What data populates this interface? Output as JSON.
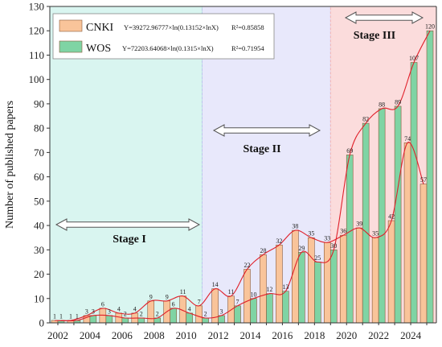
{
  "chart_data": {
    "type": "bar",
    "ylabel": "Number of published papers",
    "xlabel": "",
    "ylim": [
      0,
      130
    ],
    "yticks": [
      0,
      10,
      20,
      30,
      40,
      50,
      60,
      70,
      80,
      90,
      100,
      110,
      120,
      130
    ],
    "xtick_labels": [
      "2002",
      "2004",
      "2006",
      "2008",
      "2010",
      "2012",
      "2014",
      "2016",
      "2018",
      "2020",
      "2022",
      "2024"
    ],
    "categories": [
      2002,
      2003,
      2004,
      2005,
      2006,
      2007,
      2008,
      2009,
      2010,
      2011,
      2012,
      2013,
      2014,
      2015,
      2016,
      2017,
      2018,
      2019,
      2020,
      2021,
      2022,
      2023,
      2024,
      2025
    ],
    "series": [
      {
        "name": "CNKI",
        "color": "#f9c49a",
        "values": [
          1,
          1,
          3,
          6,
          4,
          4,
          9,
          9,
          11,
          7,
          14,
          11,
          22,
          28,
          32,
          38,
          35,
          33,
          36,
          39,
          35,
          42,
          74,
          57
        ]
      },
      {
        "name": "WOS",
        "color": "#7fd4a4",
        "values": [
          1,
          1,
          3,
          3,
          2,
          2,
          2,
          6,
          4,
          2,
          3,
          7,
          10,
          12,
          13,
          29,
          25,
          30,
          69,
          82,
          88,
          89,
          107,
          120
        ]
      }
    ],
    "legend": {
      "position": "top-left",
      "entries": [
        {
          "name": "CNKI",
          "equation": "Y=39272.96777×ln(0.13152×lnX)",
          "r2": "R²=0.85858"
        },
        {
          "name": "WOS",
          "equation": "Y=72203.64068×ln(0.1315×lnX)",
          "r2": "R²=0.71954"
        }
      ]
    },
    "stages": [
      {
        "label": "Stage I",
        "from": 2001.5,
        "to": 2011.0,
        "color": "#d9f5f0"
      },
      {
        "label": "Stage II",
        "from": 2011.0,
        "to": 2019.0,
        "color": "#e8e8fb"
      },
      {
        "label": "Stage III",
        "from": 2019.0,
        "to": 2025.6,
        "color": "#fbdcdc"
      }
    ],
    "grid": false
  }
}
